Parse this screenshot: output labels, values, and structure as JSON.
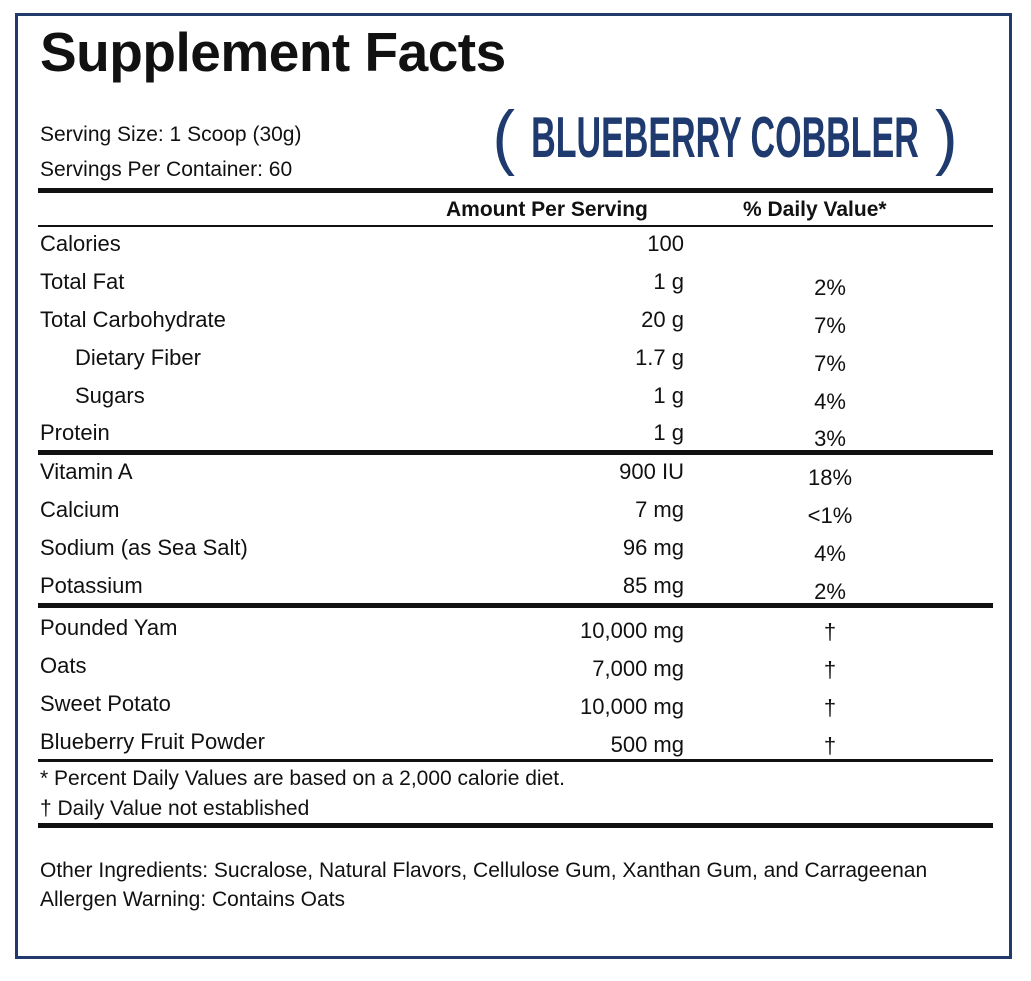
{
  "title": "Supplement Facts",
  "flavor": {
    "open": "(",
    "name": "BLUEBERRY COBBLER",
    "close": ")",
    "color": "#1f3a6e"
  },
  "serving": {
    "size": "Serving Size: 1 Scoop (30g)",
    "per_container": "Servings Per Container: 60"
  },
  "headers": {
    "amount": "Amount Per Serving",
    "dv": "% Daily Value*"
  },
  "rows": [
    {
      "label": "Calories",
      "amount": "100",
      "dv": ""
    },
    {
      "label": "Total Fat",
      "amount": "1 g",
      "dv": "2%"
    },
    {
      "label": "Total Carbohydrate",
      "amount": "20 g",
      "dv": "7%"
    },
    {
      "label": "Dietary Fiber",
      "amount": "1.7 g",
      "dv": "7%"
    },
    {
      "label": "Sugars",
      "amount": "1 g",
      "dv": "4%"
    },
    {
      "label": "Protein",
      "amount": "1 g",
      "dv": "3%"
    },
    {
      "label": "Vitamin A",
      "amount": "900 IU",
      "dv": "18%"
    },
    {
      "label": "Calcium",
      "amount": "7 mg",
      "dv": "<1%"
    },
    {
      "label": "Sodium (as Sea Salt)",
      "amount": "96 mg",
      "dv": "4%"
    },
    {
      "label": "Potassium",
      "amount": "85 mg",
      "dv": "2%"
    },
    {
      "label": "Pounded Yam",
      "amount": "10,000 mg",
      "dv": "†"
    },
    {
      "label": "Oats",
      "amount": "7,000 mg",
      "dv": "†"
    },
    {
      "label": "Sweet Potato",
      "amount": "10,000 mg",
      "dv": "†"
    },
    {
      "label": "Blueberry Fruit Powder",
      "amount": "500 mg",
      "dv": "†"
    }
  ],
  "footnotes": {
    "percent": "* Percent Daily Values are based on a 2,000 calorie diet.",
    "dagger": "† Daily Value not established"
  },
  "other_ingredients": "Other Ingredients: Sucralose, Natural Flavors, Cellulose Gum, Xanthan Gum, and Carrageenan",
  "allergen": "Allergen Warning: Contains Oats",
  "colors": {
    "border": "#213a6b",
    "text": "#111111"
  }
}
